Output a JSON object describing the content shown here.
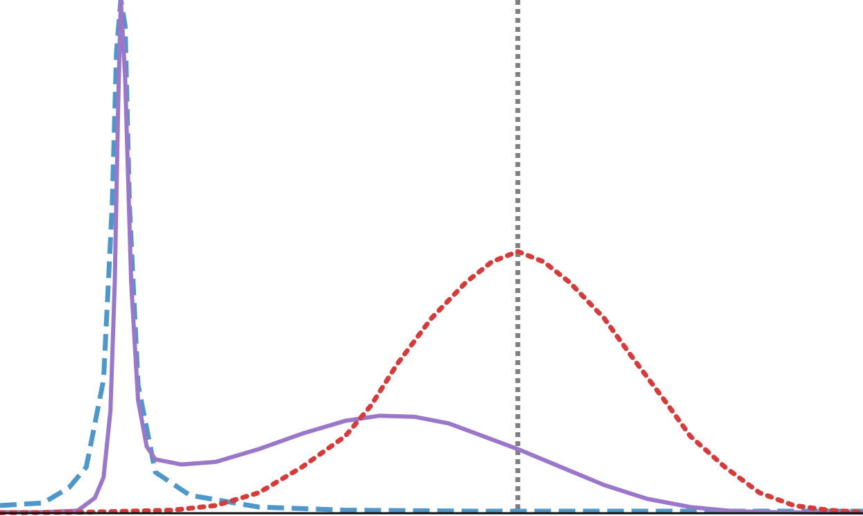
{
  "chart_data": {
    "type": "line",
    "title": "",
    "xlabel": "",
    "ylabel": "",
    "xlim": [
      0,
      1
    ],
    "ylim": [
      0,
      1
    ],
    "grid": false,
    "legend": "none",
    "x_ticks": [],
    "y_ticks": [],
    "vline": {
      "x": 0.6,
      "color": "#808080",
      "style": "dotted"
    },
    "series": [
      {
        "style": "dashed",
        "color": "#4f97c8",
        "points": [
          [
            0.0,
            0.015
          ],
          [
            0.05,
            0.02
          ],
          [
            0.08,
            0.05
          ],
          [
            0.1,
            0.09
          ],
          [
            0.12,
            0.26
          ],
          [
            0.13,
            0.6
          ],
          [
            0.135,
            0.9
          ],
          [
            0.14,
            1.0
          ],
          [
            0.145,
            0.95
          ],
          [
            0.15,
            0.6
          ],
          [
            0.16,
            0.25
          ],
          [
            0.18,
            0.08
          ],
          [
            0.22,
            0.035
          ],
          [
            0.3,
            0.012
          ],
          [
            0.4,
            0.006
          ],
          [
            0.55,
            0.004
          ],
          [
            0.75,
            0.004
          ],
          [
            1.0,
            0.004
          ]
        ]
      },
      {
        "style": "solid",
        "color": "#9a77c8",
        "points": [
          [
            0.0,
            0.002
          ],
          [
            0.05,
            0.002
          ],
          [
            0.09,
            0.005
          ],
          [
            0.11,
            0.03
          ],
          [
            0.12,
            0.07
          ],
          [
            0.128,
            0.2
          ],
          [
            0.133,
            0.45
          ],
          [
            0.137,
            0.8
          ],
          [
            0.14,
            1.0
          ],
          [
            0.145,
            0.85
          ],
          [
            0.152,
            0.45
          ],
          [
            0.16,
            0.22
          ],
          [
            0.17,
            0.13
          ],
          [
            0.18,
            0.105
          ],
          [
            0.21,
            0.095
          ],
          [
            0.25,
            0.1
          ],
          [
            0.3,
            0.125
          ],
          [
            0.35,
            0.155
          ],
          [
            0.4,
            0.18
          ],
          [
            0.44,
            0.19
          ],
          [
            0.48,
            0.188
          ],
          [
            0.52,
            0.175
          ],
          [
            0.56,
            0.15
          ],
          [
            0.6,
            0.125
          ],
          [
            0.65,
            0.09
          ],
          [
            0.7,
            0.055
          ],
          [
            0.75,
            0.028
          ],
          [
            0.8,
            0.012
          ],
          [
            0.85,
            0.004
          ],
          [
            0.9,
            0.002
          ],
          [
            1.0,
            0.001
          ]
        ]
      },
      {
        "style": "dotted",
        "color": "#d43b3b",
        "points": [
          [
            0.0,
            0.001
          ],
          [
            0.1,
            0.002
          ],
          [
            0.2,
            0.006
          ],
          [
            0.25,
            0.015
          ],
          [
            0.3,
            0.04
          ],
          [
            0.35,
            0.09
          ],
          [
            0.4,
            0.15
          ],
          [
            0.43,
            0.21
          ],
          [
            0.46,
            0.29
          ],
          [
            0.5,
            0.38
          ],
          [
            0.54,
            0.45
          ],
          [
            0.57,
            0.49
          ],
          [
            0.6,
            0.51
          ],
          [
            0.63,
            0.49
          ],
          [
            0.66,
            0.45
          ],
          [
            0.7,
            0.38
          ],
          [
            0.73,
            0.31
          ],
          [
            0.77,
            0.22
          ],
          [
            0.8,
            0.15
          ],
          [
            0.84,
            0.09
          ],
          [
            0.88,
            0.04
          ],
          [
            0.92,
            0.015
          ],
          [
            0.96,
            0.006
          ],
          [
            1.0,
            0.002
          ]
        ]
      }
    ]
  }
}
